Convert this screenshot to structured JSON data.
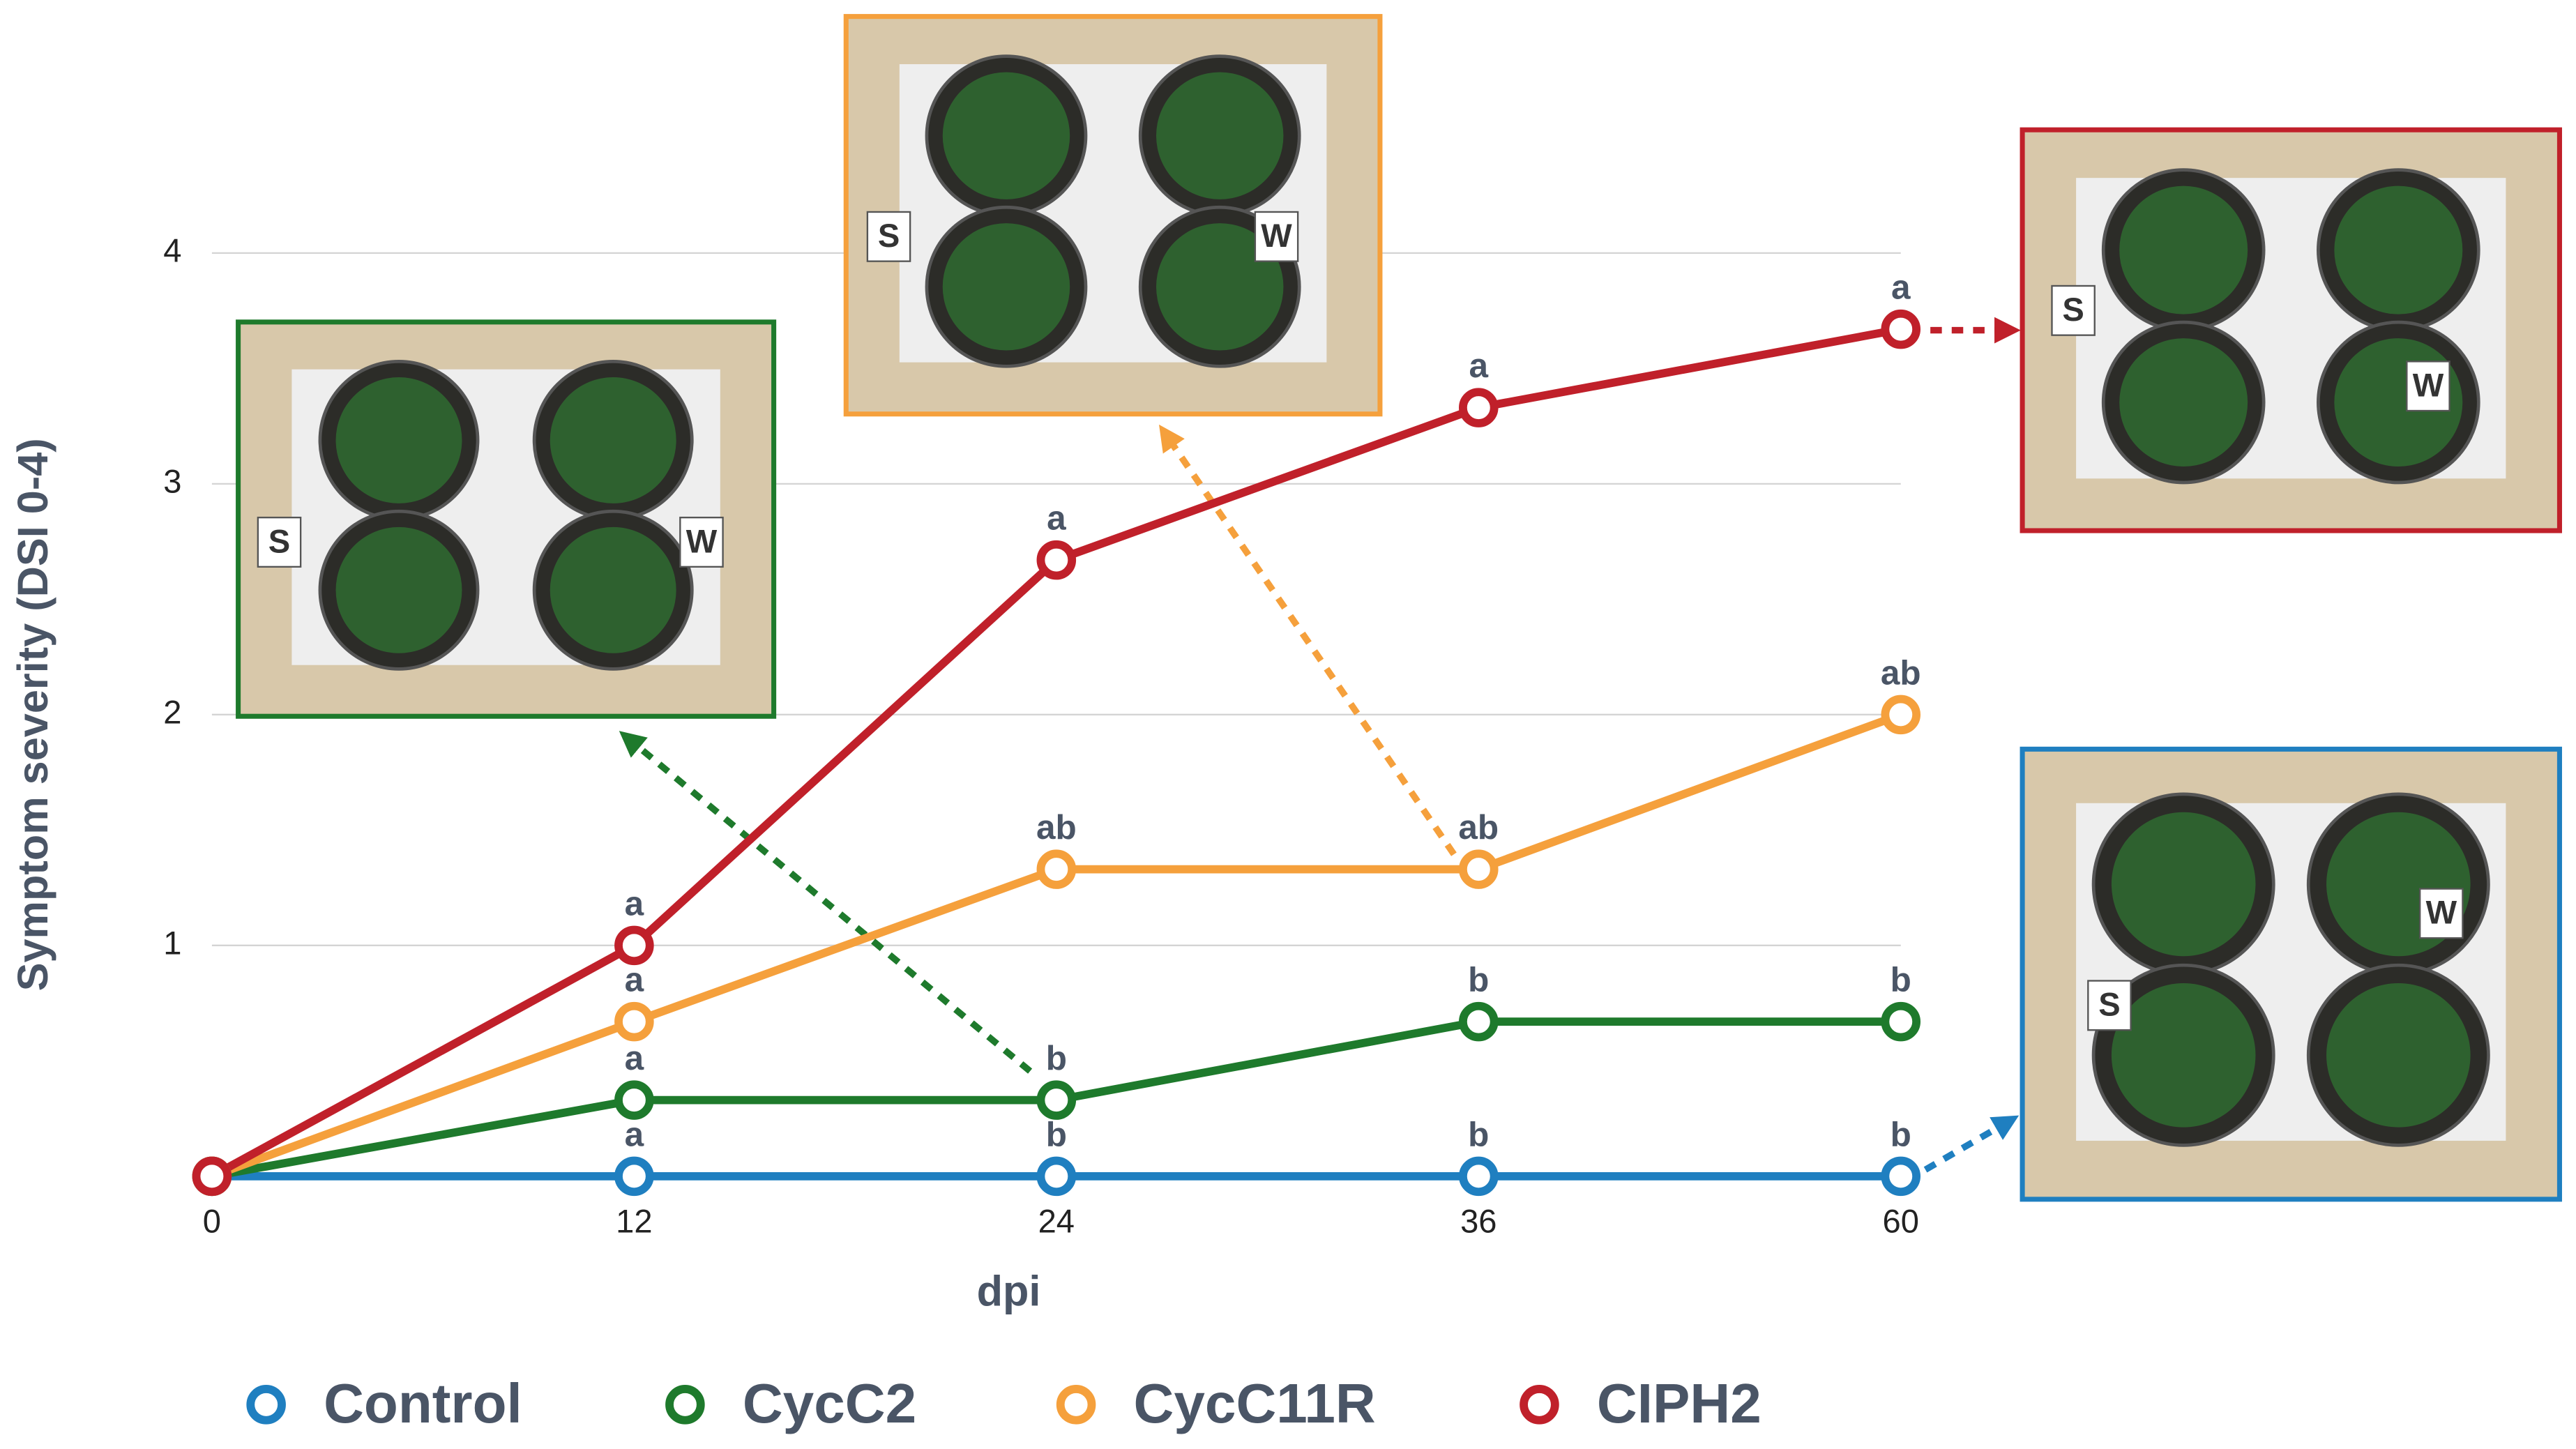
{
  "chart_data": {
    "type": "line",
    "x_label": "dpi",
    "y_label": "Symptom severity (DSI 0-4)",
    "categories": [
      "0",
      "12",
      "24",
      "36",
      "60"
    ],
    "ylim": [
      0,
      4
    ],
    "yticks": [
      1,
      2,
      3,
      4
    ],
    "grid": true,
    "legend": "bottom",
    "panel_labels": [
      "S",
      "W"
    ],
    "series": [
      {
        "name": "Control",
        "color": "#1f7fc0",
        "values": [
          0,
          0,
          0,
          0,
          0
        ],
        "letters": [
          null,
          "a",
          "b",
          "b",
          "b"
        ]
      },
      {
        "name": "CycC2",
        "color": "#1e7a2c",
        "values": [
          0,
          0.33,
          0.33,
          0.67,
          0.67
        ],
        "letters": [
          null,
          "a",
          "b",
          "b",
          "b"
        ]
      },
      {
        "name": "CycC11R",
        "color": "#f5a03c",
        "values": [
          0,
          0.67,
          1.33,
          1.33,
          2
        ],
        "letters": [
          null,
          "a",
          "ab",
          "ab",
          "ab"
        ]
      },
      {
        "name": "CIPH2",
        "color": "#c0202a",
        "values": [
          0,
          1,
          2.67,
          3.33,
          3.67
        ],
        "letters": [
          null,
          "a",
          "a",
          "a",
          "a"
        ]
      }
    ]
  }
}
